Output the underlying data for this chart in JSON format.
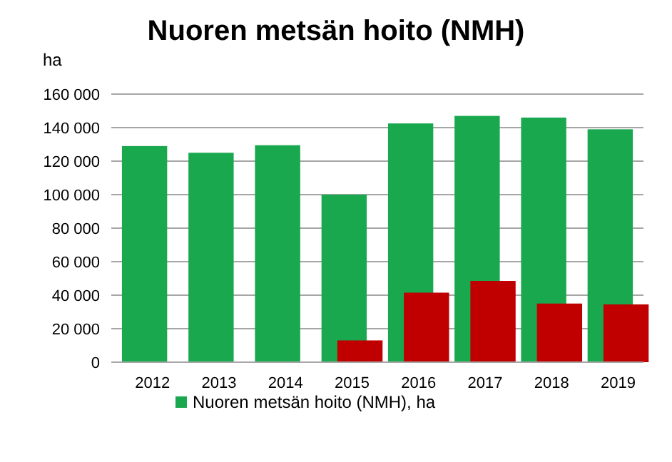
{
  "chart_data": {
    "type": "bar",
    "title": "Nuoren metsän hoito (NMH)",
    "ylabel": "ha",
    "categories": [
      "2012",
      "2013",
      "2014",
      "2015",
      "2016",
      "2017",
      "2018",
      "2019"
    ],
    "series": [
      {
        "name": "Nuoren metsän hoito (NMH), ha",
        "color": "#1aa84f",
        "values": [
          129000,
          125000,
          129500,
          100000,
          142500,
          147000,
          146000,
          139000
        ]
      },
      {
        "color": "#c00000",
        "values": [
          null,
          null,
          null,
          13000,
          41500,
          48500,
          35000,
          34500
        ]
      }
    ],
    "ylim": [
      0,
      160000
    ],
    "yticks": [
      {
        "value": 0,
        "label": "0"
      },
      {
        "value": 20000,
        "label": "20 000"
      },
      {
        "value": 40000,
        "label": "40 000"
      },
      {
        "value": 60000,
        "label": "60 000"
      },
      {
        "value": 80000,
        "label": "80 000"
      },
      {
        "value": 100000,
        "label": "100 000"
      },
      {
        "value": 120000,
        "label": "120 000"
      },
      {
        "value": 140000,
        "label": "140 000"
      },
      {
        "value": 160000,
        "label": "160 000"
      }
    ],
    "grid": "y",
    "legend": "bottom"
  }
}
